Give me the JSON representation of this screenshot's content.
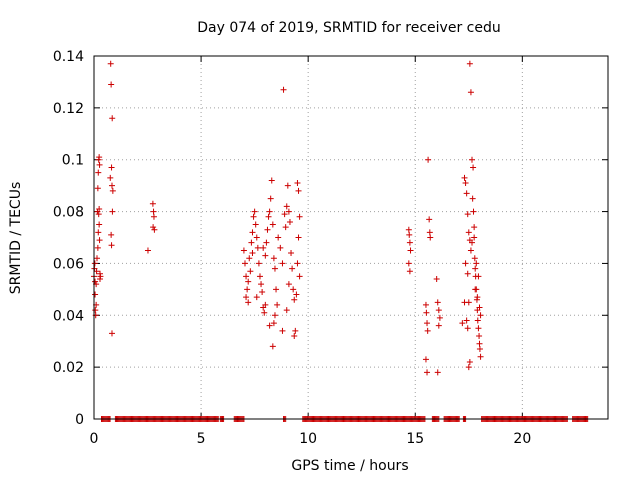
{
  "chart_data": {
    "type": "scatter",
    "title": "Day 074 of 2019, SRMTID for receiver cedu",
    "xlabel": "GPS time / hours",
    "ylabel": "SRMTID / TECUs",
    "xlim": [
      0,
      24
    ],
    "ylim": [
      0,
      0.14
    ],
    "grid": true,
    "marker": "+",
    "colors": {
      "series": "#cc0000",
      "grid": "#a0a0a0",
      "frame": "#000000"
    },
    "x_ticks": [
      {
        "value": 0,
        "label": "0"
      },
      {
        "value": 5,
        "label": "5"
      },
      {
        "value": 10,
        "label": "10"
      },
      {
        "value": 15,
        "label": "15"
      },
      {
        "value": 20,
        "label": "20"
      }
    ],
    "y_ticks": [
      {
        "value": 0,
        "label": "0"
      },
      {
        "value": 0.02,
        "label": "0.02"
      },
      {
        "value": 0.04,
        "label": "0.04"
      },
      {
        "value": 0.06,
        "label": "0.06"
      },
      {
        "value": 0.08,
        "label": "0.08"
      },
      {
        "value": 0.1,
        "label": "0.1"
      },
      {
        "value": 0.12,
        "label": "0.12"
      },
      {
        "value": 0.14,
        "label": "0.14"
      }
    ],
    "series": [
      {
        "name": "SRMTID",
        "points": [
          [
            0.0,
            0.055
          ],
          [
            0.02,
            0.058
          ],
          [
            0.04,
            0.06
          ],
          [
            0.05,
            0.048
          ],
          [
            0.06,
            0.042
          ],
          [
            0.08,
            0.04
          ],
          [
            0.1,
            0.052
          ],
          [
            0.12,
            0.057
          ],
          [
            0.14,
            0.062
          ],
          [
            0.16,
            0.08
          ],
          [
            0.18,
            0.089
          ],
          [
            0.2,
            0.095
          ],
          [
            0.22,
            0.1
          ],
          [
            0.24,
            0.101
          ],
          [
            0.26,
            0.098
          ],
          [
            0.2,
            0.072
          ],
          [
            0.22,
            0.079
          ],
          [
            0.24,
            0.081
          ],
          [
            0.26,
            0.069
          ],
          [
            0.28,
            0.056
          ],
          [
            0.3,
            0.055
          ],
          [
            0.18,
            0.066
          ],
          [
            0.24,
            0.075
          ],
          [
            0.28,
            0.054
          ],
          [
            0.1,
            0.044
          ],
          [
            0.05,
            0.053
          ],
          [
            0.78,
            0.137
          ],
          [
            0.8,
            0.129
          ],
          [
            0.85,
            0.116
          ],
          [
            0.82,
            0.097
          ],
          [
            0.84,
            0.09
          ],
          [
            0.88,
            0.088
          ],
          [
            0.86,
            0.08
          ],
          [
            0.8,
            0.071
          ],
          [
            0.82,
            0.067
          ],
          [
            0.84,
            0.033
          ],
          [
            0.76,
            0.093
          ],
          [
            2.52,
            0.065
          ],
          [
            2.75,
            0.083
          ],
          [
            2.78,
            0.08
          ],
          [
            2.8,
            0.078
          ],
          [
            2.76,
            0.074
          ],
          [
            2.82,
            0.073
          ],
          [
            7.0,
            0.065
          ],
          [
            7.05,
            0.06
          ],
          [
            7.1,
            0.055
          ],
          [
            7.15,
            0.05
          ],
          [
            7.1,
            0.047
          ],
          [
            7.2,
            0.045
          ],
          [
            7.25,
            0.062
          ],
          [
            7.3,
            0.057
          ],
          [
            7.35,
            0.068
          ],
          [
            7.4,
            0.072
          ],
          [
            7.45,
            0.078
          ],
          [
            7.5,
            0.08
          ],
          [
            7.55,
            0.075
          ],
          [
            7.6,
            0.07
          ],
          [
            7.65,
            0.066
          ],
          [
            7.7,
            0.06
          ],
          [
            7.75,
            0.055
          ],
          [
            7.8,
            0.052
          ],
          [
            7.85,
            0.049
          ],
          [
            7.9,
            0.043
          ],
          [
            7.95,
            0.041
          ],
          [
            8.0,
            0.063
          ],
          [
            8.05,
            0.068
          ],
          [
            8.1,
            0.073
          ],
          [
            8.15,
            0.078
          ],
          [
            8.2,
            0.08
          ],
          [
            8.25,
            0.085
          ],
          [
            8.3,
            0.092
          ],
          [
            8.35,
            0.075
          ],
          [
            8.4,
            0.062
          ],
          [
            8.45,
            0.058
          ],
          [
            8.5,
            0.05
          ],
          [
            8.55,
            0.044
          ],
          [
            8.35,
            0.028
          ],
          [
            8.4,
            0.037
          ],
          [
            8.45,
            0.04
          ],
          [
            8.6,
            0.07
          ],
          [
            8.7,
            0.066
          ],
          [
            8.8,
            0.06
          ],
          [
            8.85,
            0.127
          ],
          [
            8.9,
            0.079
          ],
          [
            8.95,
            0.074
          ],
          [
            9.0,
            0.082
          ],
          [
            9.05,
            0.09
          ],
          [
            9.1,
            0.08
          ],
          [
            9.15,
            0.076
          ],
          [
            9.2,
            0.064
          ],
          [
            9.25,
            0.058
          ],
          [
            9.3,
            0.05
          ],
          [
            9.35,
            0.046
          ],
          [
            9.4,
            0.034
          ],
          [
            9.35,
            0.032
          ],
          [
            9.5,
            0.091
          ],
          [
            9.55,
            0.088
          ],
          [
            9.6,
            0.078
          ],
          [
            9.55,
            0.07
          ],
          [
            9.5,
            0.06
          ],
          [
            9.6,
            0.055
          ],
          [
            9.45,
            0.048
          ],
          [
            7.2,
            0.053
          ],
          [
            7.6,
            0.047
          ],
          [
            8.0,
            0.044
          ],
          [
            8.2,
            0.036
          ],
          [
            8.8,
            0.034
          ],
          [
            9.0,
            0.042
          ],
          [
            9.1,
            0.052
          ],
          [
            7.4,
            0.064
          ],
          [
            7.9,
            0.066
          ],
          [
            14.7,
            0.073
          ],
          [
            14.72,
            0.071
          ],
          [
            14.75,
            0.068
          ],
          [
            14.78,
            0.065
          ],
          [
            14.7,
            0.06
          ],
          [
            14.75,
            0.057
          ],
          [
            15.5,
            0.044
          ],
          [
            15.52,
            0.041
          ],
          [
            15.55,
            0.037
          ],
          [
            15.58,
            0.034
          ],
          [
            15.5,
            0.023
          ],
          [
            15.55,
            0.018
          ],
          [
            15.6,
            0.1
          ],
          [
            15.65,
            0.077
          ],
          [
            15.68,
            0.072
          ],
          [
            15.7,
            0.07
          ],
          [
            16.0,
            0.054
          ],
          [
            16.05,
            0.045
          ],
          [
            16.1,
            0.042
          ],
          [
            16.15,
            0.039
          ],
          [
            16.1,
            0.036
          ],
          [
            16.05,
            0.018
          ],
          [
            17.3,
            0.093
          ],
          [
            17.35,
            0.091
          ],
          [
            17.4,
            0.087
          ],
          [
            17.45,
            0.079
          ],
          [
            17.5,
            0.072
          ],
          [
            17.55,
            0.069
          ],
          [
            17.6,
            0.065
          ],
          [
            17.55,
            0.137
          ],
          [
            17.6,
            0.126
          ],
          [
            17.65,
            0.1
          ],
          [
            17.7,
            0.097
          ],
          [
            17.68,
            0.085
          ],
          [
            17.72,
            0.08
          ],
          [
            17.75,
            0.07
          ],
          [
            17.78,
            0.062
          ],
          [
            17.8,
            0.058
          ],
          [
            17.82,
            0.055
          ],
          [
            17.85,
            0.05
          ],
          [
            17.88,
            0.046
          ],
          [
            17.9,
            0.042
          ],
          [
            17.92,
            0.038
          ],
          [
            17.95,
            0.035
          ],
          [
            17.98,
            0.032
          ],
          [
            18.0,
            0.029
          ],
          [
            18.02,
            0.027
          ],
          [
            18.05,
            0.024
          ],
          [
            17.5,
            0.02
          ],
          [
            17.55,
            0.022
          ],
          [
            17.45,
            0.035
          ],
          [
            17.4,
            0.038
          ],
          [
            17.5,
            0.045
          ],
          [
            17.45,
            0.056
          ],
          [
            17.35,
            0.06
          ],
          [
            17.3,
            0.045
          ],
          [
            17.2,
            0.037
          ],
          [
            17.65,
            0.068
          ],
          [
            17.75,
            0.074
          ],
          [
            17.8,
            0.05
          ],
          [
            17.9,
            0.047
          ],
          [
            18.0,
            0.043
          ],
          [
            18.05,
            0.04
          ],
          [
            17.95,
            0.055
          ],
          [
            17.85,
            0.06
          ]
        ],
        "zero_segments": [
          [
            0.35,
            0.75
          ],
          [
            1.0,
            5.8
          ],
          [
            5.9,
            6.05
          ],
          [
            6.55,
            7.0
          ],
          [
            8.85,
            8.95
          ],
          [
            9.75,
            15.45
          ],
          [
            15.8,
            16.1
          ],
          [
            16.35,
            17.05
          ],
          [
            17.25,
            17.35
          ],
          [
            18.1,
            22.1
          ],
          [
            22.35,
            23.05
          ]
        ]
      }
    ]
  }
}
